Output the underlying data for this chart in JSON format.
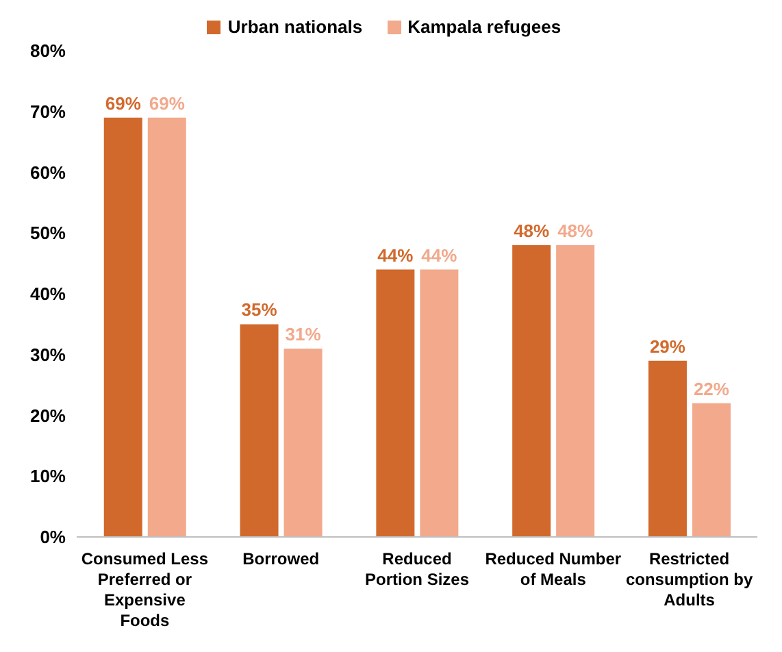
{
  "chart_data": {
    "type": "bar",
    "categories": [
      "Consumed Less Preferred or Expensive Foods",
      "Borrowed",
      "Reduced Portion Sizes",
      "Reduced Number of Meals",
      "Restricted consumption by Adults"
    ],
    "series": [
      {
        "name": "Urban nationals",
        "color": "#d2692c",
        "values": [
          69,
          35,
          44,
          48,
          29
        ],
        "value_labels": [
          "69%",
          "35%",
          "44%",
          "48%",
          "29%"
        ]
      },
      {
        "name": "Kampala refugees",
        "color": "#f2a98c",
        "values": [
          69,
          31,
          44,
          48,
          22
        ],
        "value_labels": [
          "69%",
          "31%",
          "44%",
          "48%",
          "22%"
        ]
      }
    ],
    "ylim": [
      0,
      80
    ],
    "yticks": [
      {
        "value": 0,
        "label": "0%"
      },
      {
        "value": 10,
        "label": "10%"
      },
      {
        "value": 20,
        "label": "20%"
      },
      {
        "value": 30,
        "label": "30%"
      },
      {
        "value": 40,
        "label": "40%"
      },
      {
        "value": 50,
        "label": "50%"
      },
      {
        "value": 60,
        "label": "60%"
      },
      {
        "value": 70,
        "label": "70%"
      },
      {
        "value": 80,
        "label": "80%"
      }
    ],
    "grid": false,
    "legend": "top"
  }
}
